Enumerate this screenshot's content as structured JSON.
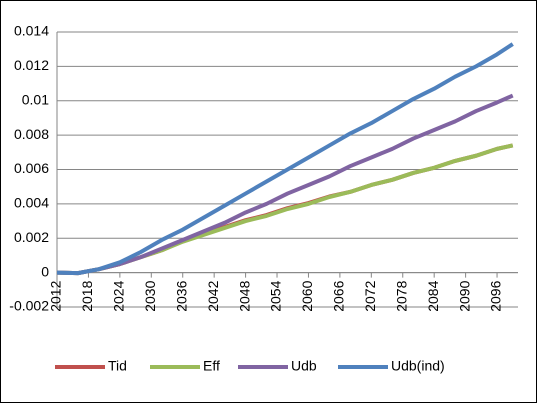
{
  "chart_data": {
    "type": "line",
    "x": [
      2012,
      2016,
      2020,
      2024,
      2028,
      2032,
      2036,
      2040,
      2044,
      2048,
      2052,
      2056,
      2060,
      2064,
      2068,
      2072,
      2076,
      2080,
      2084,
      2088,
      2092,
      2096,
      2099
    ],
    "series": [
      {
        "name": "Tid",
        "color": "#c0504d",
        "values": [
          0,
          -3e-05,
          0.0002,
          0.0005,
          0.0009,
          0.0013,
          0.00185,
          0.00225,
          0.00265,
          0.00305,
          0.00335,
          0.00375,
          0.00405,
          0.00443,
          0.0047,
          0.0051,
          0.0054,
          0.0058,
          0.0061,
          0.0065,
          0.0068,
          0.0072,
          0.0074
        ]
      },
      {
        "name": "Eff",
        "color": "#9bbb59",
        "values": [
          0,
          -3e-05,
          0.0002,
          0.0005,
          0.0009,
          0.0013,
          0.0018,
          0.0022,
          0.0026,
          0.003,
          0.0033,
          0.0037,
          0.004,
          0.0044,
          0.0047,
          0.0051,
          0.0054,
          0.0058,
          0.0061,
          0.0065,
          0.0068,
          0.0072,
          0.0074
        ]
      },
      {
        "name": "Udb",
        "color": "#8064a2",
        "values": [
          0,
          -3e-05,
          0.0002,
          0.0005,
          0.0009,
          0.0014,
          0.0019,
          0.0024,
          0.0029,
          0.0035,
          0.004,
          0.0046,
          0.0051,
          0.0056,
          0.0062,
          0.0067,
          0.0072,
          0.0078,
          0.0083,
          0.0088,
          0.0094,
          0.0099,
          0.0103
        ]
      },
      {
        "name": "Udb(ind)",
        "color": "#4f81bd",
        "values": [
          0,
          -3e-05,
          0.0002,
          0.0006,
          0.0012,
          0.0019,
          0.0025,
          0.0032,
          0.0039,
          0.0046,
          0.0053,
          0.006,
          0.0067,
          0.0074,
          0.0081,
          0.0087,
          0.0094,
          0.0101,
          0.0107,
          0.0114,
          0.012,
          0.0127,
          0.0133
        ]
      }
    ],
    "xlim": [
      2012,
      2100
    ],
    "xticks": [
      2012,
      2018,
      2024,
      2030,
      2036,
      2042,
      2048,
      2054,
      2060,
      2066,
      2072,
      2078,
      2084,
      2090,
      2096
    ],
    "ylim": [
      -0.002,
      0.014
    ],
    "yticks": [
      -0.002,
      0,
      0.002,
      0.004,
      0.006,
      0.008,
      0.01,
      0.012,
      0.014
    ],
    "grid": true,
    "legend": "bottom"
  }
}
